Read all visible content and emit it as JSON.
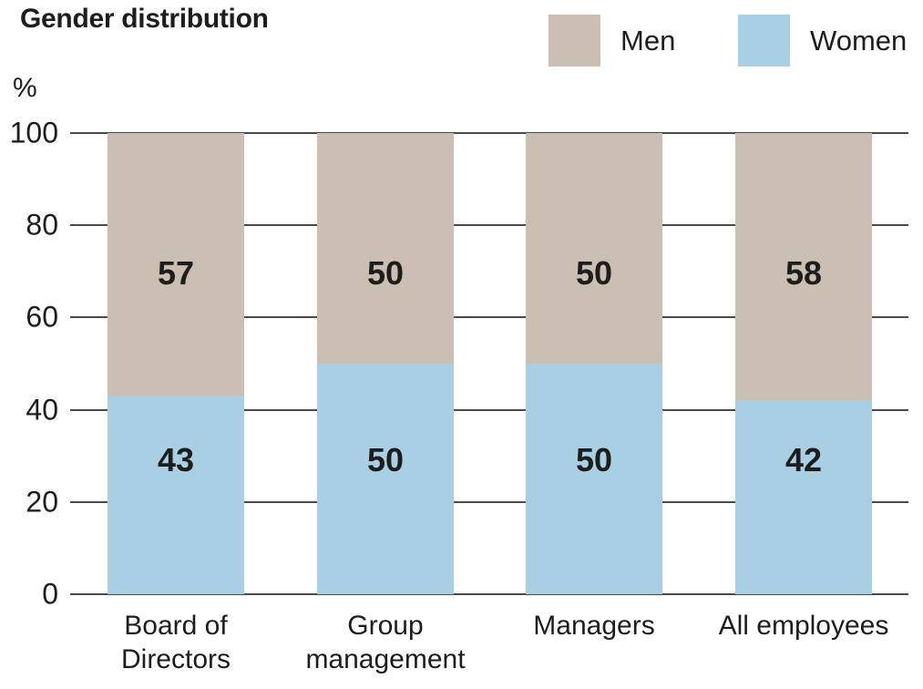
{
  "chart_data": {
    "type": "bar",
    "stacked": true,
    "title": "Gender distribution",
    "ylabel": "%",
    "xlabel": "",
    "ylim": [
      0,
      100
    ],
    "yticks": [
      0,
      20,
      40,
      60,
      80,
      100
    ],
    "grid": true,
    "legend_position": "top-right",
    "categories": [
      "Board of\nDirectors",
      "Group\nmanagement",
      "Managers",
      "All employees"
    ],
    "series": [
      {
        "name": "Men",
        "color": "#cbbeb2",
        "values": [
          57,
          50,
          50,
          58
        ]
      },
      {
        "name": "Women",
        "color": "#a9cfe4",
        "values": [
          43,
          50,
          50,
          42
        ]
      }
    ]
  },
  "colors": {
    "text": "#1d1d1b",
    "gridline": "#4a4a48",
    "background": "#ffffff",
    "men": "#cbbeb2",
    "women": "#a9cfe4"
  }
}
